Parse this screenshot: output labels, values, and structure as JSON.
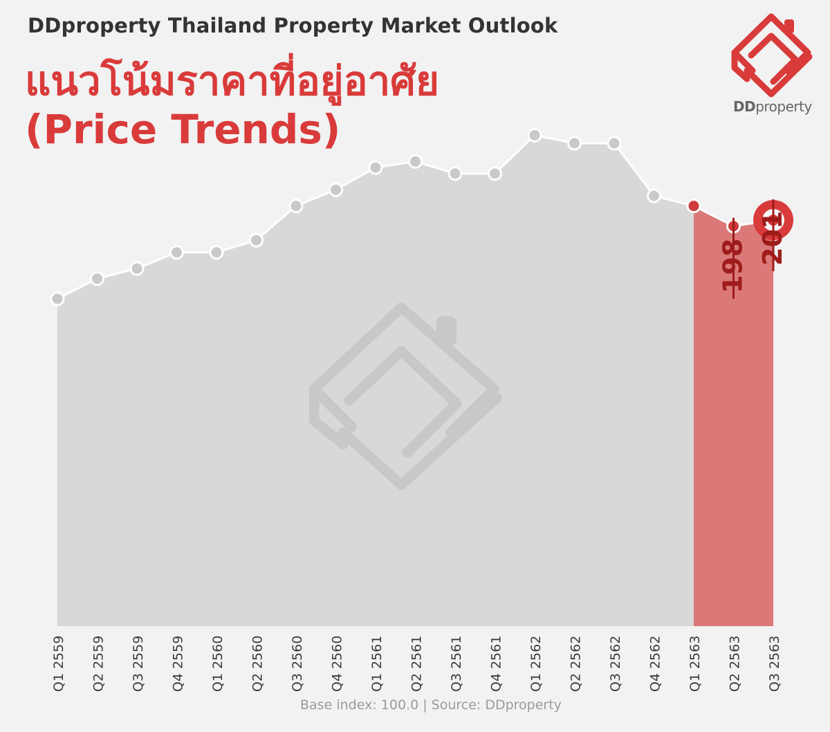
{
  "header": {
    "supertitle": "DDproperty Thailand Property Market Outlook",
    "title_line1": "แนวโน้มราคาที่อยู่อาศัย",
    "title_line2": "(Price Trends)"
  },
  "logo": {
    "text_bold": "DD",
    "text_light": "property",
    "icon": "ddproperty-house-logo-icon"
  },
  "footnote": "Base index: 100.0 | Source: DDproperty",
  "colors": {
    "background": "#f3f2f2",
    "area_gray": "#d9d8d8",
    "area_red": "#db7979",
    "accent_red": "#d93a3a",
    "dark_red": "#9e1c1c",
    "marker_fill": "#c9c9c9",
    "marker_red_fill": "#cf3a3a",
    "axis_label": "#3a3a3a"
  },
  "chart_data": {
    "type": "area",
    "categories": [
      "Q1 2559",
      "Q2 2559",
      "Q3 2559",
      "Q4 2559",
      "Q1 2560",
      "Q2 2560",
      "Q3 2560",
      "Q4 2560",
      "Q1 2561",
      "Q2 2561",
      "Q3 2561",
      "Q4 2561",
      "Q1 2562",
      "Q2 2562",
      "Q3 2562",
      "Q4 2562",
      "Q1 2563",
      "Q2 2563",
      "Q3 2563"
    ],
    "values": [
      162,
      172,
      177,
      185,
      185,
      191,
      208,
      216,
      227,
      230,
      224,
      224,
      243,
      239,
      239,
      213,
      208,
      198,
      201
    ],
    "ylim": [
      0,
      310
    ],
    "highlight_start_index": 16,
    "annotations": [
      {
        "index": 17,
        "label": "198"
      },
      {
        "index": 18,
        "label": "201"
      }
    ],
    "grid": false,
    "legend": "none",
    "watermark": "ddproperty-logo-watermark"
  }
}
